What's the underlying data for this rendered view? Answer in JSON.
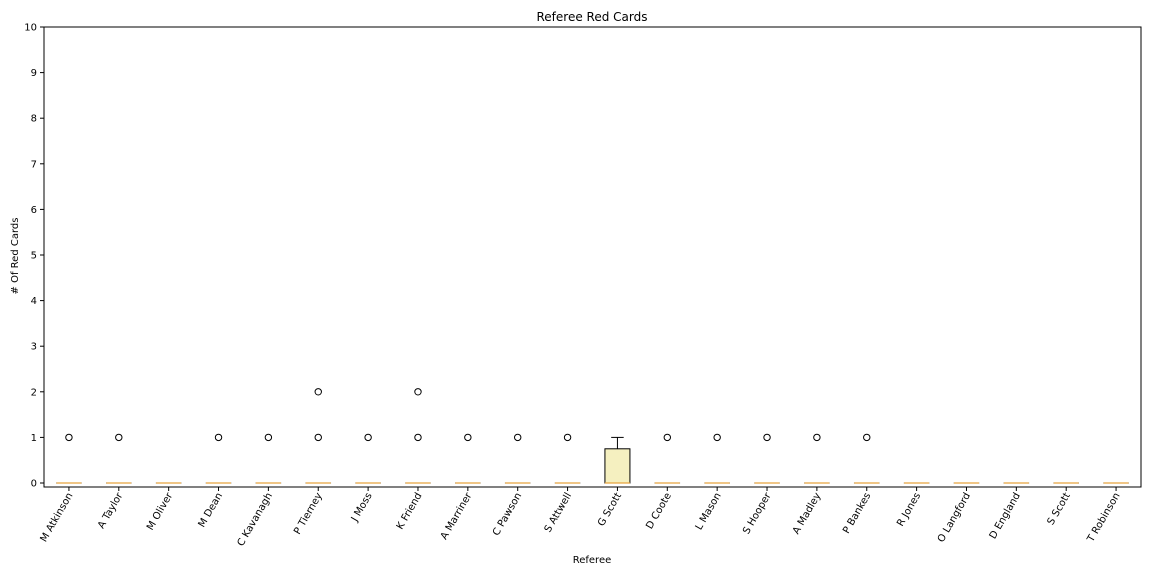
{
  "chart_data": {
    "type": "boxplot",
    "title": "Referee Red Cards",
    "xlabel": "Referee",
    "ylabel": "# Of Red Cards",
    "ylim": [
      0,
      10
    ],
    "yticks": [
      0,
      1,
      2,
      3,
      4,
      5,
      6,
      7,
      8,
      9,
      10
    ],
    "grid": false,
    "colors": {
      "box_fill": "#f5f0c0",
      "median": "#e8a33d",
      "outline": "#000000"
    },
    "categories": [
      "M Atkinson",
      "A Taylor",
      "M Oliver",
      "M Dean",
      "C Kavanagh",
      "P Tierney",
      "J Moss",
      "K Friend",
      "A Marriner",
      "C Pawson",
      "S Attwell",
      "G Scott",
      "D Coote",
      "L Mason",
      "S Hooper",
      "A Madley",
      "P Bankes",
      "R Jones",
      "O Langford",
      "D England",
      "S Scott",
      "T Robinson"
    ],
    "boxes": [
      {
        "q1": 0,
        "median": 0,
        "q3": 0,
        "whisker_low": 0,
        "whisker_high": 0,
        "outliers": [
          1
        ]
      },
      {
        "q1": 0,
        "median": 0,
        "q3": 0,
        "whisker_low": 0,
        "whisker_high": 0,
        "outliers": [
          1
        ]
      },
      {
        "q1": 0,
        "median": 0,
        "q3": 0,
        "whisker_low": 0,
        "whisker_high": 0,
        "outliers": []
      },
      {
        "q1": 0,
        "median": 0,
        "q3": 0,
        "whisker_low": 0,
        "whisker_high": 0,
        "outliers": [
          1
        ]
      },
      {
        "q1": 0,
        "median": 0,
        "q3": 0,
        "whisker_low": 0,
        "whisker_high": 0,
        "outliers": [
          1
        ]
      },
      {
        "q1": 0,
        "median": 0,
        "q3": 0,
        "whisker_low": 0,
        "whisker_high": 0,
        "outliers": [
          1,
          2
        ]
      },
      {
        "q1": 0,
        "median": 0,
        "q3": 0,
        "whisker_low": 0,
        "whisker_high": 0,
        "outliers": [
          1
        ]
      },
      {
        "q1": 0,
        "median": 0,
        "q3": 0,
        "whisker_low": 0,
        "whisker_high": 0,
        "outliers": [
          1,
          2
        ]
      },
      {
        "q1": 0,
        "median": 0,
        "q3": 0,
        "whisker_low": 0,
        "whisker_high": 0,
        "outliers": [
          1
        ]
      },
      {
        "q1": 0,
        "median": 0,
        "q3": 0,
        "whisker_low": 0,
        "whisker_high": 0,
        "outliers": [
          1
        ]
      },
      {
        "q1": 0,
        "median": 0,
        "q3": 0,
        "whisker_low": 0,
        "whisker_high": 0,
        "outliers": [
          1
        ]
      },
      {
        "q1": 0,
        "median": 0,
        "q3": 0.75,
        "whisker_low": 0,
        "whisker_high": 1,
        "outliers": []
      },
      {
        "q1": 0,
        "median": 0,
        "q3": 0,
        "whisker_low": 0,
        "whisker_high": 0,
        "outliers": [
          1
        ]
      },
      {
        "q1": 0,
        "median": 0,
        "q3": 0,
        "whisker_low": 0,
        "whisker_high": 0,
        "outliers": [
          1
        ]
      },
      {
        "q1": 0,
        "median": 0,
        "q3": 0,
        "whisker_low": 0,
        "whisker_high": 0,
        "outliers": [
          1
        ]
      },
      {
        "q1": 0,
        "median": 0,
        "q3": 0,
        "whisker_low": 0,
        "whisker_high": 0,
        "outliers": [
          1
        ]
      },
      {
        "q1": 0,
        "median": 0,
        "q3": 0,
        "whisker_low": 0,
        "whisker_high": 0,
        "outliers": [
          1
        ]
      },
      {
        "q1": 0,
        "median": 0,
        "q3": 0,
        "whisker_low": 0,
        "whisker_high": 0,
        "outliers": []
      },
      {
        "q1": 0,
        "median": 0,
        "q3": 0,
        "whisker_low": 0,
        "whisker_high": 0,
        "outliers": []
      },
      {
        "q1": 0,
        "median": 0,
        "q3": 0,
        "whisker_low": 0,
        "whisker_high": 0,
        "outliers": []
      },
      {
        "q1": 0,
        "median": 0,
        "q3": 0,
        "whisker_low": 0,
        "whisker_high": 0,
        "outliers": []
      },
      {
        "q1": 0,
        "median": 0,
        "q3": 0,
        "whisker_low": 0,
        "whisker_high": 0,
        "outliers": []
      }
    ]
  }
}
